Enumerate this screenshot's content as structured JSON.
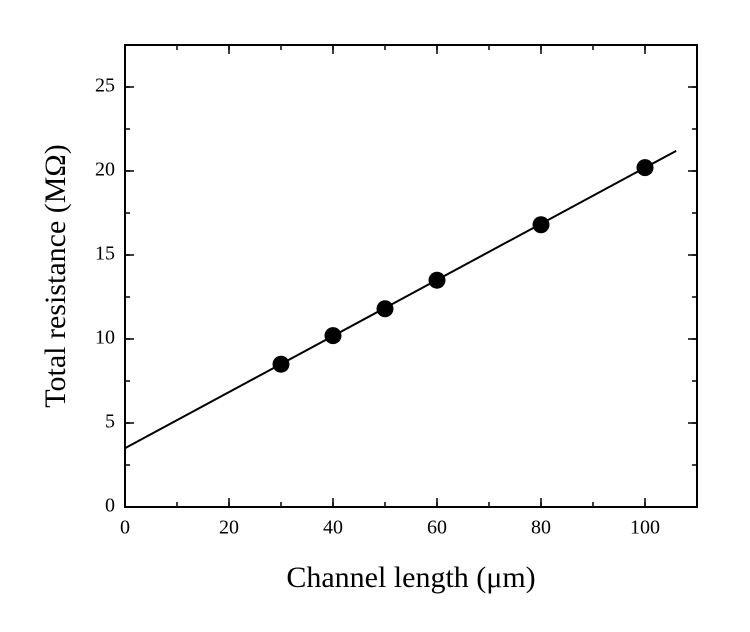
{
  "chart_data": {
    "type": "scatter",
    "xlabel": "Channel length (μm)",
    "ylabel": "Total resistance (MΩ)",
    "xlim": [
      0,
      110
    ],
    "xticks": [
      0,
      20,
      40,
      60,
      80,
      100
    ],
    "x_minor_step": 10,
    "ylim": [
      0,
      27.5
    ],
    "yticks": [
      0,
      5,
      10,
      15,
      20,
      25
    ],
    "y_minor_step": 2.5,
    "series": [
      {
        "mode": "markers",
        "color": "#000000",
        "x": [
          30,
          40,
          50,
          60,
          80,
          100
        ],
        "values": [
          8.5,
          10.2,
          11.8,
          13.5,
          16.8,
          20.2
        ]
      },
      {
        "mode": "line",
        "color": "#000000",
        "x": [
          0,
          106
        ],
        "values": [
          3.5,
          21.2
        ]
      }
    ]
  }
}
